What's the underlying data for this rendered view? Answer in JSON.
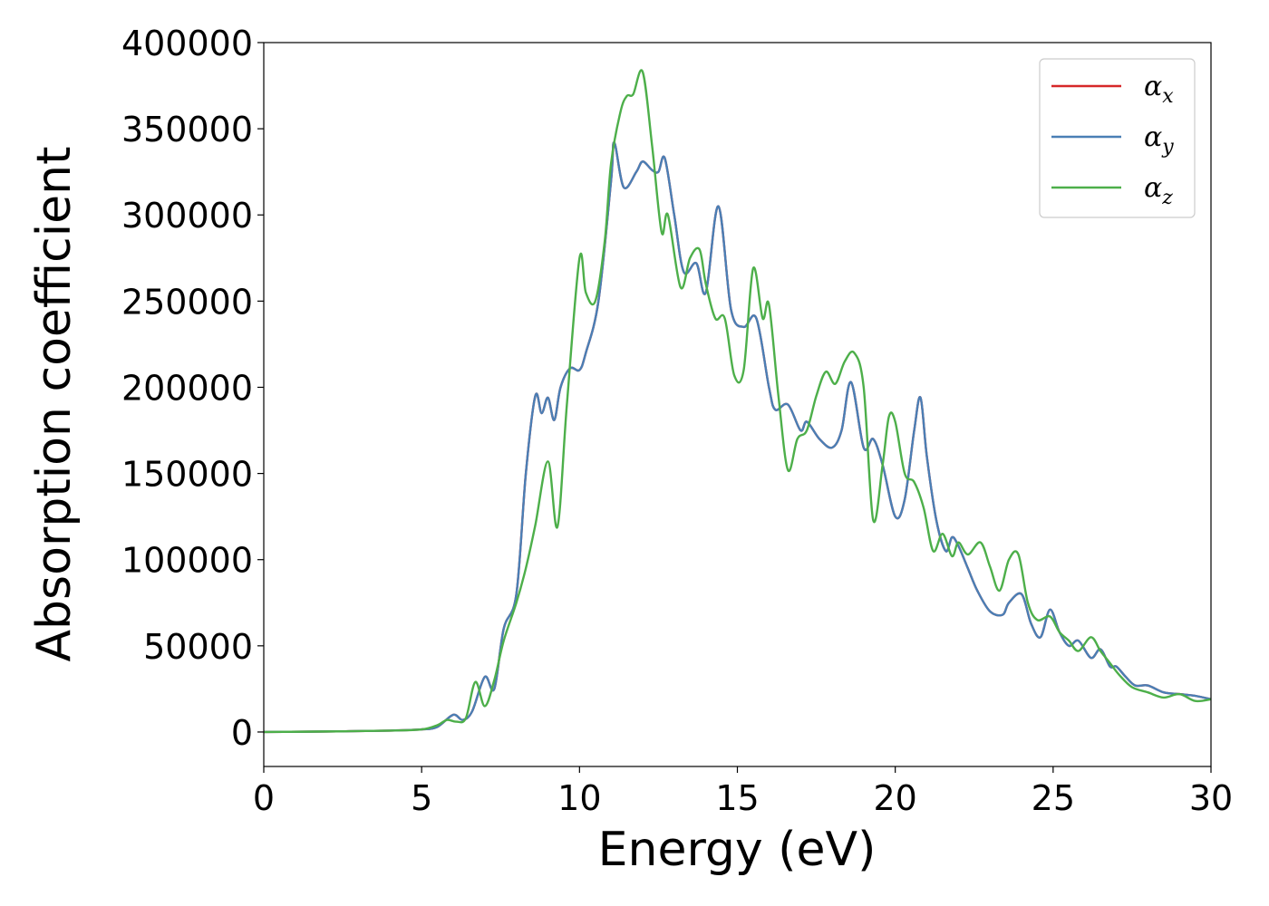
{
  "chart_data": {
    "type": "line",
    "title": "",
    "xlabel": "Energy (eV)",
    "ylabel": "Absorption coefficient",
    "xlim": [
      0,
      30
    ],
    "ylim": [
      -20000,
      400000
    ],
    "xticks": [
      0,
      5,
      10,
      15,
      20,
      25,
      30
    ],
    "xtick_labels": [
      "0",
      "5",
      "10",
      "15",
      "20",
      "25",
      "30"
    ],
    "yticks": [
      0,
      50000,
      100000,
      150000,
      200000,
      250000,
      300000,
      350000,
      400000
    ],
    "ytick_labels": [
      "0",
      "50000",
      "100000",
      "150000",
      "200000",
      "250000",
      "300000",
      "350000",
      "400000"
    ],
    "grid": false,
    "legend_position": "top-right",
    "series": [
      {
        "name": "α_x",
        "legend_base": "α",
        "legend_sub": "x",
        "color": "#d62728",
        "x": [
          0,
          2,
          4,
          5,
          5.5,
          6,
          6.3,
          6.6,
          7,
          7.3,
          7.6,
          8,
          8.3,
          8.6,
          8.8,
          9,
          9.2,
          9.4,
          9.7,
          10,
          10.2,
          10.6,
          11,
          11.1,
          11.4,
          11.8,
          12,
          12.3,
          12.5,
          12.7,
          13,
          13.3,
          13.7,
          14,
          14.4,
          14.8,
          15.2,
          15.6,
          16,
          16.2,
          16.6,
          17,
          17.2,
          17.6,
          18,
          18.3,
          18.6,
          19,
          19.3,
          19.6,
          20,
          20.3,
          20.6,
          20.8,
          21,
          21.3,
          21.6,
          21.8,
          22,
          22.3,
          22.6,
          23,
          23.4,
          23.6,
          24,
          24.3,
          24.6,
          24.9,
          25.2,
          25.5,
          25.8,
          26.2,
          26.5,
          26.8,
          27,
          27.3,
          27.6,
          28,
          28.5,
          29,
          29.5,
          30
        ],
        "values": [
          0,
          300,
          800,
          1500,
          3000,
          10000,
          7000,
          12000,
          32000,
          25000,
          60000,
          80000,
          150000,
          195000,
          185000,
          194000,
          181000,
          200000,
          211000,
          210000,
          220000,
          250000,
          320000,
          342000,
          316000,
          325000,
          331000,
          326000,
          325000,
          333000,
          300000,
          267000,
          272000,
          255000,
          305000,
          245000,
          235000,
          240000,
          200000,
          187000,
          190000,
          175000,
          180000,
          170000,
          165000,
          175000,
          203000,
          165000,
          170000,
          155000,
          125000,
          135000,
          175000,
          194000,
          160000,
          123000,
          105000,
          113000,
          108000,
          95000,
          82000,
          70000,
          68000,
          75000,
          80000,
          63000,
          55000,
          71000,
          58000,
          50000,
          53000,
          43000,
          48000,
          38000,
          38000,
          32000,
          27000,
          27000,
          23000,
          22000,
          21000,
          19000
        ]
      },
      {
        "name": "α_y",
        "legend_base": "α",
        "legend_sub": "y",
        "color": "#4a7fb5",
        "x": [
          0,
          2,
          4,
          5,
          5.5,
          6,
          6.3,
          6.6,
          7,
          7.3,
          7.6,
          8,
          8.3,
          8.6,
          8.8,
          9,
          9.2,
          9.4,
          9.7,
          10,
          10.2,
          10.6,
          11,
          11.1,
          11.4,
          11.8,
          12,
          12.3,
          12.5,
          12.7,
          13,
          13.3,
          13.7,
          14,
          14.4,
          14.8,
          15.2,
          15.6,
          16,
          16.2,
          16.6,
          17,
          17.2,
          17.6,
          18,
          18.3,
          18.6,
          19,
          19.3,
          19.6,
          20,
          20.3,
          20.6,
          20.8,
          21,
          21.3,
          21.6,
          21.8,
          22,
          22.3,
          22.6,
          23,
          23.4,
          23.6,
          24,
          24.3,
          24.6,
          24.9,
          25.2,
          25.5,
          25.8,
          26.2,
          26.5,
          26.8,
          27,
          27.3,
          27.6,
          28,
          28.5,
          29,
          29.5,
          30
        ],
        "values": [
          0,
          300,
          800,
          1500,
          3000,
          10000,
          7000,
          12000,
          32000,
          25000,
          60000,
          80000,
          150000,
          195000,
          185000,
          194000,
          181000,
          200000,
          211000,
          210000,
          220000,
          250000,
          320000,
          342000,
          316000,
          325000,
          331000,
          326000,
          325000,
          333000,
          300000,
          267000,
          272000,
          255000,
          305000,
          245000,
          235000,
          240000,
          200000,
          187000,
          190000,
          175000,
          180000,
          170000,
          165000,
          175000,
          203000,
          165000,
          170000,
          155000,
          125000,
          135000,
          175000,
          194000,
          160000,
          123000,
          105000,
          113000,
          108000,
          95000,
          82000,
          70000,
          68000,
          75000,
          80000,
          63000,
          55000,
          71000,
          58000,
          50000,
          53000,
          43000,
          48000,
          38000,
          38000,
          32000,
          27000,
          27000,
          23000,
          22000,
          21000,
          19000
        ]
      },
      {
        "name": "α_z",
        "legend_base": "α",
        "legend_sub": "z",
        "color": "#4daf4a",
        "x": [
          0,
          2,
          4,
          5,
          5.5,
          5.8,
          6.1,
          6.4,
          6.7,
          7,
          7.3,
          7.6,
          8,
          8.3,
          8.6,
          9,
          9.3,
          9.6,
          10,
          10.2,
          10.5,
          10.8,
          11,
          11.3,
          11.5,
          11.7,
          12,
          12.3,
          12.6,
          12.8,
          13.2,
          13.5,
          13.8,
          14,
          14.3,
          14.6,
          14.9,
          15.2,
          15.5,
          15.8,
          16,
          16.3,
          16.6,
          16.9,
          17.2,
          17.5,
          17.8,
          18.1,
          18.4,
          18.7,
          19,
          19.3,
          19.6,
          19.8,
          20,
          20.3,
          20.6,
          20.9,
          21.2,
          21.5,
          21.8,
          22,
          22.3,
          22.7,
          23,
          23.3,
          23.6,
          23.9,
          24.2,
          24.5,
          24.9,
          25.2,
          25.5,
          25.8,
          26.2,
          26.5,
          26.8,
          27.1,
          27.5,
          28,
          28.5,
          29,
          29.5,
          30
        ],
        "values": [
          0,
          300,
          800,
          1500,
          4000,
          7000,
          6000,
          8000,
          29000,
          15000,
          30000,
          53000,
          75000,
          95000,
          120000,
          157000,
          119000,
          190000,
          275000,
          255000,
          250000,
          285000,
          330000,
          360000,
          369000,
          370000,
          383000,
          340000,
          290000,
          300000,
          258000,
          275000,
          280000,
          260000,
          240000,
          240000,
          207000,
          210000,
          269000,
          240000,
          248000,
          195000,
          152000,
          170000,
          175000,
          195000,
          209000,
          202000,
          215000,
          220000,
          200000,
          123000,
          155000,
          183000,
          180000,
          150000,
          145000,
          130000,
          105000,
          115000,
          102000,
          110000,
          103000,
          110000,
          96000,
          82000,
          100000,
          103000,
          75000,
          65000,
          67000,
          58000,
          53000,
          47000,
          55000,
          47000,
          40000,
          33000,
          26000,
          23000,
          20000,
          22000,
          18000,
          19000
        ]
      }
    ]
  }
}
